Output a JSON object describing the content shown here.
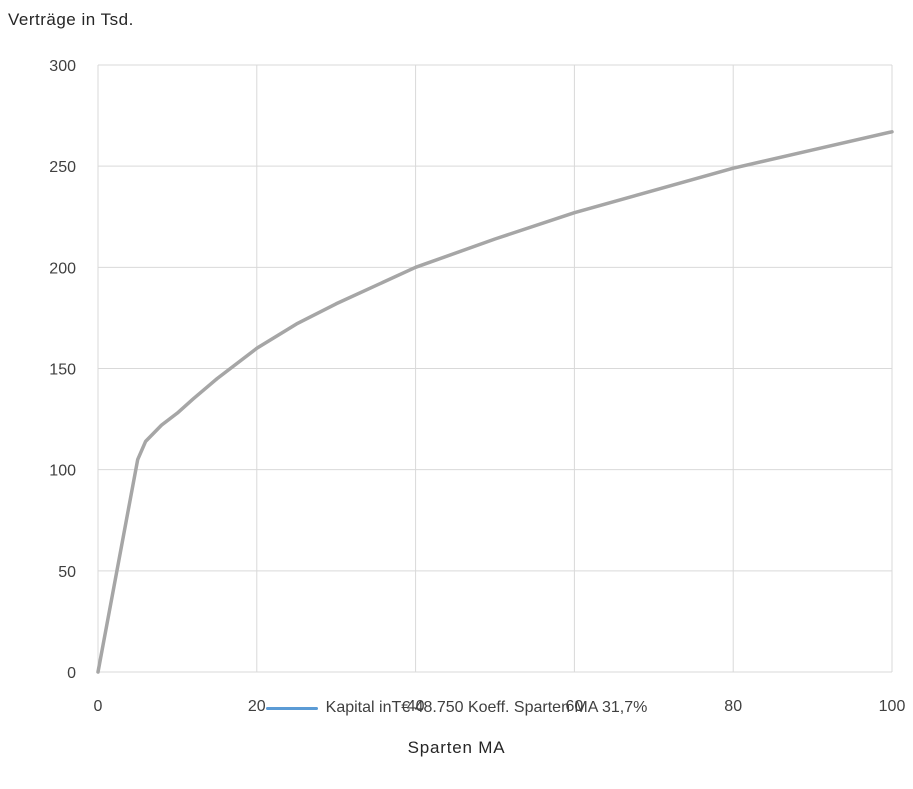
{
  "chart_data": {
    "type": "line",
    "ylabel": "Verträge in Tsd.",
    "xlabel": "Sparten MA",
    "xlim": [
      0,
      100
    ],
    "ylim": [
      0,
      300
    ],
    "xticks": [
      0,
      20,
      40,
      60,
      80,
      100
    ],
    "yticks": [
      0,
      50,
      100,
      150,
      200,
      250,
      300
    ],
    "grid": true,
    "legend_position": "bottom",
    "series": [
      {
        "name": "Kapital inT€ 48.750 Koeff. Sparten MA 31,7%",
        "legend_color": "#5b9bd5",
        "line_color": "#a6a6a6",
        "x": [
          0,
          1,
          2,
          3,
          4,
          5,
          6,
          8,
          10,
          12,
          15,
          20,
          25,
          30,
          40,
          50,
          60,
          70,
          80,
          90,
          100
        ],
        "y": [
          0,
          21,
          42,
          63,
          84,
          105,
          114,
          122,
          128,
          135,
          145,
          160,
          172,
          182,
          200,
          214,
          227,
          238,
          249,
          258,
          267
        ]
      }
    ]
  }
}
